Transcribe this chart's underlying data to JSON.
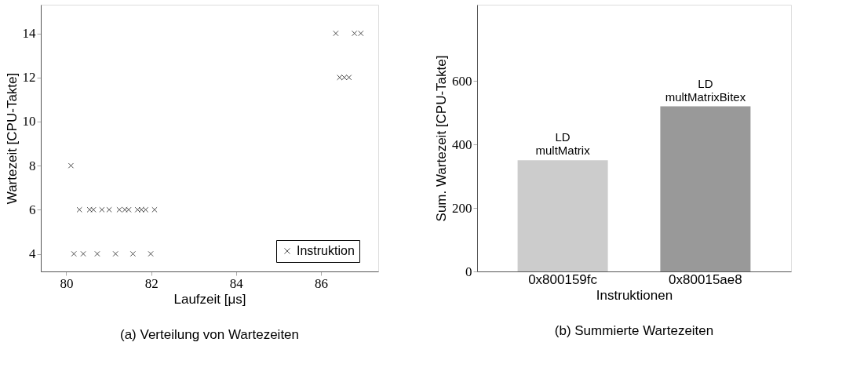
{
  "chart_data": [
    {
      "type": "scatter",
      "title": "(a) Verteilung von Wartezeiten",
      "xlabel": "Laufzeit [μs]",
      "ylabel": "Wartezeit [CPU-Takte]",
      "marker": "cross",
      "legend": "bottom right",
      "grid": false,
      "xlim": [
        79.4,
        87.35
      ],
      "xticks": [
        80,
        82,
        84,
        86
      ],
      "ylim": [
        3.2,
        15.3
      ],
      "yticks": [
        4,
        6,
        8,
        10,
        12,
        14
      ],
      "series": [
        {
          "name": "Instruktion",
          "color": "#000000",
          "x": [
            80.11,
            80.18,
            80.4,
            80.73,
            81.16,
            81.57,
            81.99,
            80.31,
            80.55,
            80.64,
            80.84,
            81.01,
            81.25,
            81.38,
            81.47,
            81.68,
            81.77,
            81.87,
            82.08,
            86.35,
            86.79,
            86.94,
            86.44,
            86.55,
            86.66
          ],
          "values": [
            8,
            4,
            4,
            4,
            4,
            4,
            4,
            6,
            6,
            6,
            6,
            6,
            6,
            6,
            6,
            6,
            6,
            6,
            6,
            14,
            14,
            14,
            12,
            12,
            12
          ]
        }
      ]
    },
    {
      "type": "bar",
      "title": "(b) Summierte Wartezeiten",
      "xlabel": "Instruktionen",
      "ylabel": "Sum. Wartezeit [CPU-Takte]",
      "grid": false,
      "categories": [
        "0x800159fc",
        "0x80015ae8"
      ],
      "values": [
        350,
        520
      ],
      "colors": [
        "#cccccc",
        "#999999"
      ],
      "ylim": [
        0,
        840
      ],
      "yticks": [
        0,
        200,
        400,
        600
      ],
      "annotations": [
        {
          "text": "LD\nmultMatrix",
          "x": "0x800159fc",
          "y": 350
        },
        {
          "text": "LD\nmultMatrixBitex",
          "x": "0x80015ae8",
          "y": 520
        }
      ]
    }
  ]
}
